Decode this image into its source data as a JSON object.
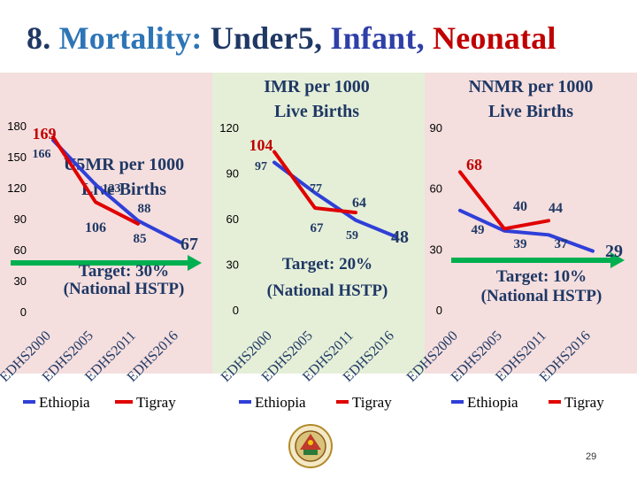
{
  "slide": {
    "title_number": "8.",
    "title_mortality": "Mortality:",
    "title_under5": "Under5,",
    "title_infant": "Infant,",
    "title_neonatal": "Neonatal",
    "page_number": "29"
  },
  "colors": {
    "ethiopia": "#2f3fd8",
    "tigray": "#e00000",
    "target_arrow": "#00b050",
    "panel1_bg": "#f4dede",
    "panel2_bg": "#e5efd8",
    "panel3_bg": "#f4dede"
  },
  "chart_data": [
    {
      "type": "line",
      "title": "U5MR per 1000 Live Births",
      "categories": [
        "EDHS2000",
        "EDHS2005",
        "EDHS2011",
        "EDHS2016"
      ],
      "y_ticks": [
        "0",
        "30",
        "60",
        "90",
        "120",
        "150",
        "180"
      ],
      "ylim": [
        0,
        180
      ],
      "series": [
        {
          "name": "Ethiopia",
          "values": [
            166,
            123,
            88,
            67
          ]
        },
        {
          "name": "Tigray",
          "values": [
            169,
            106,
            85,
            null
          ]
        }
      ],
      "data_labels": [
        "169",
        "166",
        "123",
        "106",
        "88",
        "85",
        "67"
      ],
      "target_text": "Target: 30%",
      "target_sub": "(National HSTP)"
    },
    {
      "type": "line",
      "title": "IMR per 1000 Live Births",
      "categories": [
        "EDHS2000",
        "EDHS2005",
        "EDHS2011",
        "EDHS2016"
      ],
      "y_ticks": [
        "0",
        "30",
        "60",
        "90",
        "120"
      ],
      "ylim": [
        0,
        120
      ],
      "series": [
        {
          "name": "Ethiopia",
          "values": [
            97,
            77,
            59,
            48
          ]
        },
        {
          "name": "Tigray",
          "values": [
            104,
            67,
            64,
            null
          ]
        }
      ],
      "data_labels": [
        "104",
        "97",
        "77",
        "64",
        "67",
        "59",
        "48"
      ],
      "target_text": "Target: 20%",
      "target_sub": "(National HSTP)"
    },
    {
      "type": "line",
      "title": "NNMR per 1000 Live Births",
      "categories": [
        "EDHS2000",
        "EDHS2005",
        "EDHS2011",
        "EDHS2016"
      ],
      "y_ticks": [
        "0",
        "30",
        "60",
        "90"
      ],
      "ylim": [
        0,
        90
      ],
      "series": [
        {
          "name": "Ethiopia",
          "values": [
            49,
            39,
            37,
            29
          ]
        },
        {
          "name": "Tigray",
          "values": [
            68,
            40,
            44,
            null
          ]
        }
      ],
      "data_labels": [
        "68",
        "40",
        "44",
        "49",
        "39",
        "37",
        "29"
      ],
      "target_text": "Target: 10%",
      "target_sub": "(National HSTP)"
    }
  ]
}
